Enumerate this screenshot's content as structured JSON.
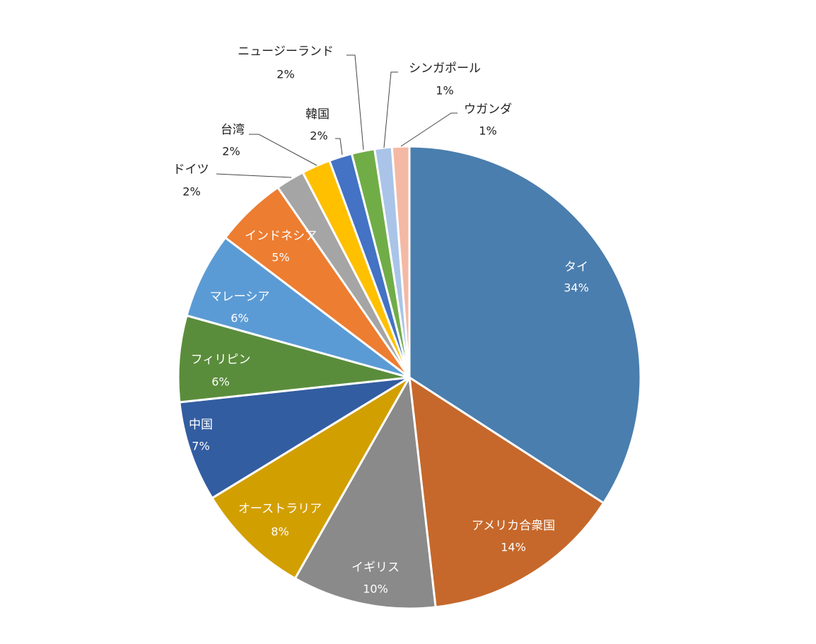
{
  "chart_data": {
    "type": "pie",
    "title": "",
    "start_angle_deg": 0,
    "direction": "clockwise",
    "slices": [
      {
        "name": "タイ",
        "value": 34,
        "label": "34%",
        "color": "#4A7EAE"
      },
      {
        "name": "アメリカ合衆国",
        "value": 14,
        "label": "14%",
        "color": "#C6682B"
      },
      {
        "name": "イギリス",
        "value": 10,
        "label": "10%",
        "color": "#8A8A8A"
      },
      {
        "name": "オーストラリア",
        "value": 8,
        "label": "8%",
        "color": "#D29F00"
      },
      {
        "name": "中国",
        "value": 7,
        "label": "7%",
        "color": "#335DA1"
      },
      {
        "name": "フィリピン",
        "value": 6,
        "label": "6%",
        "color": "#5A8D3B"
      },
      {
        "name": "マレーシア",
        "value": 6,
        "label": "6%",
        "color": "#5B9BD5"
      },
      {
        "name": "インドネシア",
        "value": 5,
        "label": "5%",
        "color": "#ED7D31"
      },
      {
        "name": "ドイツ",
        "value": 2,
        "label": "2%",
        "color": "#A5A5A5"
      },
      {
        "name": "台湾",
        "value": 2,
        "label": "2%",
        "color": "#FFC000"
      },
      {
        "name": "韓国",
        "value": 1.6,
        "label": "2%",
        "color": "#4472C4"
      },
      {
        "name": "ニュージーランド",
        "value": 1.6,
        "label": "2%",
        "color": "#70AD47"
      },
      {
        "name": "シンガポール",
        "value": 1.2,
        "label": "1%",
        "color": "#A9C4E8"
      },
      {
        "name": "ウガンダ",
        "value": 1.2,
        "label": "1%",
        "color": "#F4B9A4"
      }
    ],
    "legend": "none"
  }
}
